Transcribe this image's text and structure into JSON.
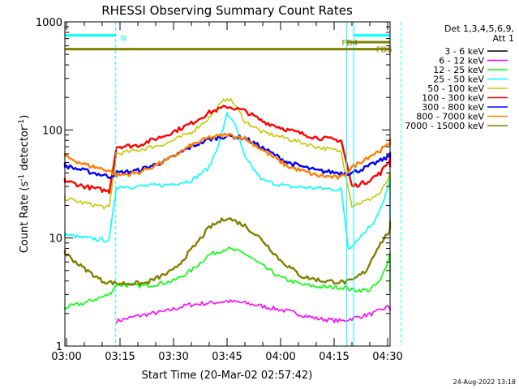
{
  "chart_data": {
    "type": "line",
    "title": "RHESSI Observing Summary Count Rates",
    "xlabel": "Start Time (20-Mar-02 02:57:42)",
    "ylabel": "Count Rate (s",
    "ylabel_sup": "-1",
    "ylabel_tail": " detector",
    "ylabel_end": ")",
    "y_scale": "log",
    "ylim": [
      1,
      1000
    ],
    "xlim_min": [
      -2.3,
      96
    ],
    "y_ticks": [
      {
        "value": 1,
        "label": "1"
      },
      {
        "value": 10,
        "label": "10"
      },
      {
        "value": 100,
        "label": "100"
      },
      {
        "value": 1000,
        "label": "1000"
      }
    ],
    "x_ticks": [
      {
        "value": 0,
        "label": "03:00"
      },
      {
        "value": 15,
        "label": "03:15"
      },
      {
        "value": 30,
        "label": "03:30"
      },
      {
        "value": 45,
        "label": "03:45"
      },
      {
        "value": 60,
        "label": "04:00"
      },
      {
        "value": 75,
        "label": "04:15"
      },
      {
        "value": 90,
        "label": "04:30"
      }
    ],
    "legend_header": [
      "Det 1,3,4,5,6,9,",
      "Att 1"
    ],
    "legend_placement": "right",
    "footer": "24-Aug-2022 13:18",
    "bars": [
      {
        "label": "N",
        "color": "#00ffff",
        "y": 750,
        "ranges": [
          [
            -2.3,
            13.8
          ],
          [
            80.5,
            94.5
          ]
        ]
      },
      {
        "label": "FD4",
        "color": "#808000",
        "y": 650,
        "ranges": [
          [
            78.5,
            94.5
          ]
        ]
      },
      {
        "label": "FD6",
        "color": "#808000",
        "y": 560,
        "ranges": [
          [
            -2.3,
            94.5
          ]
        ]
      }
    ],
    "vlines": [
      {
        "x": 13.8,
        "color": "#00ffff",
        "dash": true
      },
      {
        "x": 78.5,
        "color": "#00ffff",
        "dash": false
      },
      {
        "x": 80.5,
        "color": "#00ffff",
        "dash": false
      },
      {
        "x": 93.8,
        "color": "#00ffff",
        "dash": true
      }
    ],
    "series": [
      {
        "name": "3 - 6 keV",
        "color": "#000000",
        "points": []
      },
      {
        "name": "6 - 12 keV",
        "color": "#ff00ff",
        "points": [
          [
            14,
            1.7
          ],
          [
            20,
            1.9
          ],
          [
            28,
            2.1
          ],
          [
            34,
            2.4
          ],
          [
            40,
            2.5
          ],
          [
            45,
            2.6
          ],
          [
            50,
            2.5
          ],
          [
            56,
            2.3
          ],
          [
            62,
            2.1
          ],
          [
            70,
            1.8
          ],
          [
            77,
            1.7
          ],
          [
            80,
            1.8
          ],
          [
            86,
            2.0
          ],
          [
            90,
            2.3
          ],
          [
            94,
            2.1
          ]
        ]
      },
      {
        "name": "12 - 25 keV",
        "color": "#00ff00",
        "points": [
          [
            -2,
            2.2
          ],
          [
            5,
            2.5
          ],
          [
            12,
            3.0
          ],
          [
            14,
            3.7
          ],
          [
            22,
            3.6
          ],
          [
            30,
            4.0
          ],
          [
            35,
            5.0
          ],
          [
            40,
            7.0
          ],
          [
            45,
            8.0
          ],
          [
            50,
            7.2
          ],
          [
            55,
            5.5
          ],
          [
            60,
            4.3
          ],
          [
            66,
            3.7
          ],
          [
            72,
            3.5
          ],
          [
            78,
            3.5
          ],
          [
            80,
            3.3
          ],
          [
            85,
            3.3
          ],
          [
            88,
            4.0
          ],
          [
            91,
            7.5
          ],
          [
            94,
            3.2
          ]
        ]
      },
      {
        "name": "25 - 50 keV",
        "color": "#00ffff",
        "points": [
          [
            -2,
            11
          ],
          [
            5,
            10
          ],
          [
            12,
            9.5
          ],
          [
            14,
            30
          ],
          [
            20,
            30
          ],
          [
            28,
            31
          ],
          [
            35,
            34
          ],
          [
            40,
            45
          ],
          [
            43,
            80
          ],
          [
            45,
            140
          ],
          [
            47,
            120
          ],
          [
            50,
            55
          ],
          [
            55,
            34
          ],
          [
            62,
            30
          ],
          [
            70,
            29
          ],
          [
            77,
            28
          ],
          [
            79,
            8
          ],
          [
            82,
            10
          ],
          [
            86,
            14
          ],
          [
            89,
            22
          ],
          [
            91,
            38
          ],
          [
            93,
            25
          ],
          [
            94,
            11
          ]
        ]
      },
      {
        "name": "50 - 100 keV",
        "color": "#c8c800",
        "points": [
          [
            -2,
            24
          ],
          [
            5,
            21
          ],
          [
            12,
            19
          ],
          [
            14,
            60
          ],
          [
            20,
            65
          ],
          [
            28,
            75
          ],
          [
            35,
            95
          ],
          [
            40,
            130
          ],
          [
            43,
            170
          ],
          [
            45,
            200
          ],
          [
            47,
            175
          ],
          [
            50,
            120
          ],
          [
            55,
            95
          ],
          [
            62,
            83
          ],
          [
            70,
            70
          ],
          [
            77,
            63
          ],
          [
            80,
            20
          ],
          [
            84,
            22
          ],
          [
            88,
            26
          ],
          [
            91,
            40
          ],
          [
            94,
            28
          ]
        ]
      },
      {
        "name": "100 - 300 keV",
        "color": "#ff0000",
        "points": [
          [
            -2,
            35
          ],
          [
            5,
            30
          ],
          [
            12,
            27
          ],
          [
            14,
            70
          ],
          [
            20,
            72
          ],
          [
            28,
            90
          ],
          [
            35,
            115
          ],
          [
            40,
            145
          ],
          [
            45,
            165
          ],
          [
            50,
            150
          ],
          [
            55,
            120
          ],
          [
            62,
            100
          ],
          [
            70,
            85
          ],
          [
            77,
            80
          ],
          [
            80,
            30
          ],
          [
            84,
            33
          ],
          [
            88,
            40
          ],
          [
            91,
            55
          ],
          [
            94,
            45
          ]
        ]
      },
      {
        "name": "300 - 800 keV",
        "color": "#0000ff",
        "points": [
          [
            -2,
            48
          ],
          [
            5,
            42
          ],
          [
            12,
            37
          ],
          [
            14,
            40
          ],
          [
            20,
            42
          ],
          [
            28,
            52
          ],
          [
            35,
            70
          ],
          [
            40,
            82
          ],
          [
            45,
            88
          ],
          [
            50,
            84
          ],
          [
            55,
            68
          ],
          [
            62,
            50
          ],
          [
            70,
            42
          ],
          [
            77,
            40
          ],
          [
            80,
            40
          ],
          [
            84,
            45
          ],
          [
            88,
            52
          ],
          [
            91,
            58
          ],
          [
            94,
            60
          ]
        ]
      },
      {
        "name": "800 - 7000 keV",
        "color": "#ff8000",
        "points": [
          [
            -2,
            60
          ],
          [
            5,
            48
          ],
          [
            12,
            42
          ],
          [
            14,
            38
          ],
          [
            20,
            40
          ],
          [
            28,
            52
          ],
          [
            35,
            72
          ],
          [
            40,
            85
          ],
          [
            45,
            90
          ],
          [
            50,
            84
          ],
          [
            55,
            65
          ],
          [
            62,
            46
          ],
          [
            70,
            38
          ],
          [
            77,
            36
          ],
          [
            80,
            45
          ],
          [
            84,
            55
          ],
          [
            88,
            65
          ],
          [
            91,
            75
          ],
          [
            94,
            80
          ]
        ]
      },
      {
        "name": "7000 - 15000 keV",
        "color": "#808000",
        "points": [
          [
            -2,
            8
          ],
          [
            4,
            5.5
          ],
          [
            10,
            4.0
          ],
          [
            14,
            3.8
          ],
          [
            22,
            3.8
          ],
          [
            30,
            5.0
          ],
          [
            36,
            8.5
          ],
          [
            40,
            12.5
          ],
          [
            45,
            15.5
          ],
          [
            50,
            13
          ],
          [
            55,
            9.5
          ],
          [
            60,
            6.2
          ],
          [
            66,
            4.4
          ],
          [
            72,
            4.0
          ],
          [
            78,
            3.9
          ],
          [
            80,
            4.0
          ],
          [
            84,
            5
          ],
          [
            87,
            8
          ],
          [
            90,
            11
          ],
          [
            92,
            13.5
          ],
          [
            94,
            13.5
          ]
        ]
      }
    ]
  }
}
